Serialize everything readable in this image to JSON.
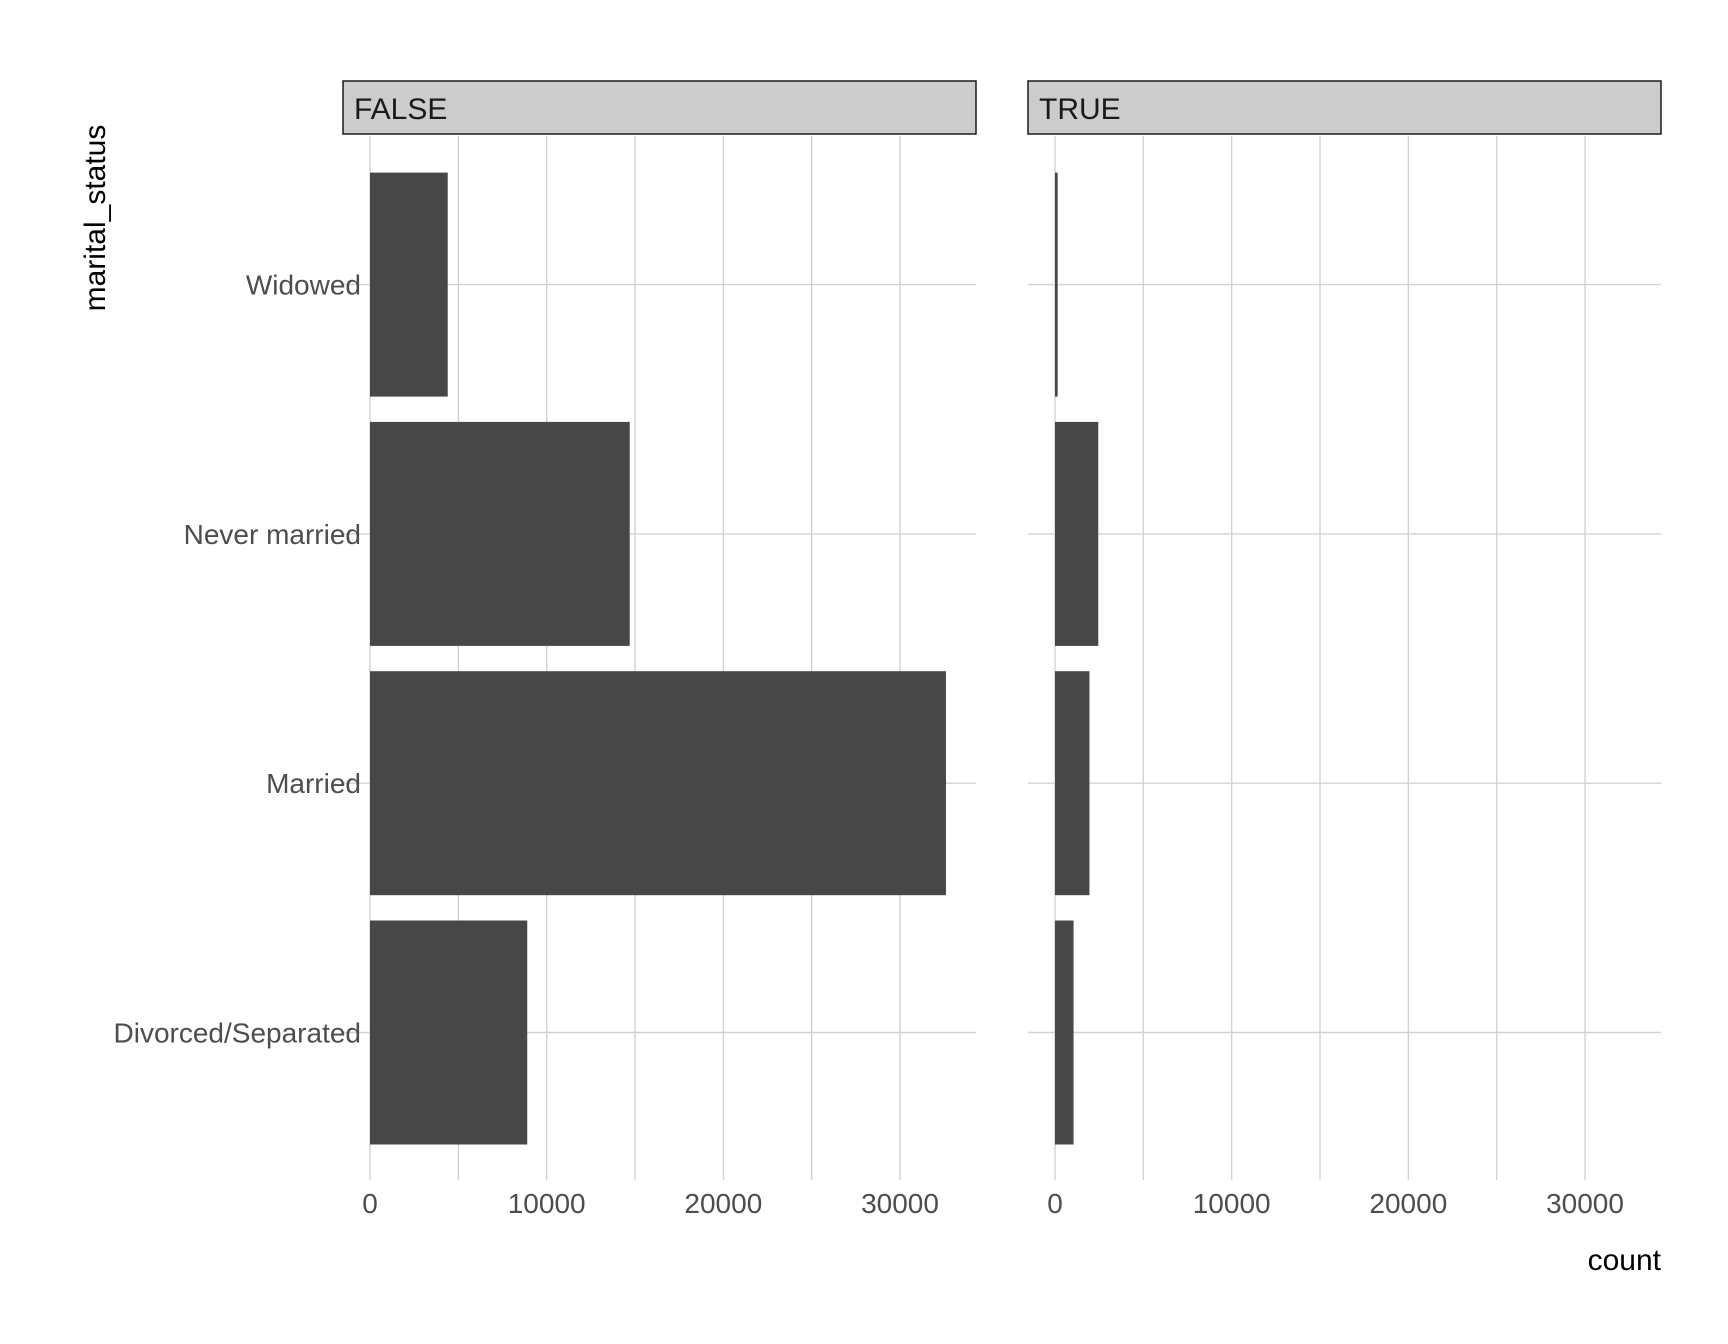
{
  "chart_data": {
    "type": "bar",
    "orientation": "horizontal",
    "facet_variable": "",
    "categories": [
      "Divorced/Separated",
      "Married",
      "Never married",
      "Widowed"
    ],
    "panels": [
      {
        "strip_label": "FALSE",
        "values": [
          8900,
          32600,
          14700,
          4400
        ]
      },
      {
        "strip_label": "TRUE",
        "values": [
          1050,
          1950,
          2450,
          150
        ]
      }
    ],
    "xlabel": "count",
    "ylabel": "marital_status",
    "xlim": [
      0,
      34300
    ],
    "x_ticks": [
      0,
      10000,
      20000,
      30000
    ],
    "x_minor_ticks": [
      5000,
      15000,
      25000
    ],
    "grid": true,
    "legend": "none",
    "bar_color": "#474747"
  }
}
